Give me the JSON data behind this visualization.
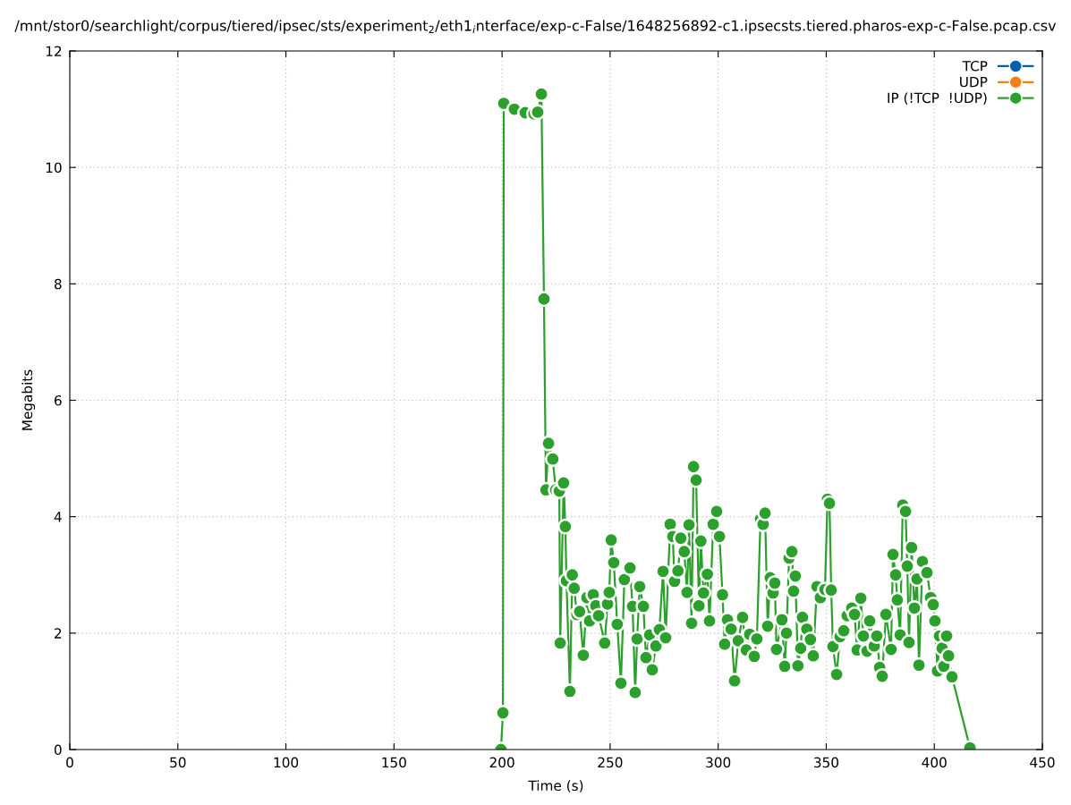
{
  "chart_data": {
    "type": "line",
    "title": "/mnt/stor0/searchlight/corpus/tiered/ipsec/sts/experiment$_{2}$/eth1$_{i}$nterface/exp-c-False/1648256892-c1.ipsecsts.tiered.pharos-exp-c-False.pcap.csv",
    "xlabel": "Time (s)",
    "ylabel": "Megabits",
    "xlim": [
      0,
      450
    ],
    "xticks": [
      0,
      50,
      100,
      150,
      200,
      250,
      300,
      350,
      400,
      450
    ],
    "ylim": [
      0,
      12
    ],
    "yticks": [
      0,
      2,
      4,
      6,
      8,
      10,
      12
    ],
    "grid": true,
    "legend": "top right",
    "marker": "circle",
    "line_style": "solid",
    "series": [
      {
        "name": "TCP",
        "color": "#0060ad"
      },
      {
        "name": "UDP",
        "color": "#f57f17"
      },
      {
        "name": "IP (!TCP  !UDP)",
        "color": "#2ca02c",
        "x": [
          199.5,
          200.4,
          200.8,
          205.7,
          210.7,
          214.8,
          216.5,
          218.2,
          219.4,
          220.3,
          221.5,
          223.5,
          224.8,
          226.5,
          226.9,
          228.5,
          229.3,
          229.8,
          231.4,
          232.5,
          233.4,
          234.6,
          235.9,
          237.6,
          239.3,
          240.5,
          242.2,
          243.4,
          244.7,
          247.5,
          248.8,
          249.6,
          250.5,
          251.7,
          253.3,
          255.0,
          256.6,
          259.2,
          260.4,
          261.6,
          262.5,
          263.7,
          265.4,
          266.6,
          268.3,
          269.5,
          271.2,
          272.8,
          274.5,
          275.7,
          277.8,
          279.0,
          279.8,
          281.4,
          282.7,
          284.3,
          285.6,
          286.5,
          287.7,
          288.6,
          289.8,
          291.1,
          292.0,
          293.2,
          295.0,
          296.0,
          297.7,
          299.3,
          300.6,
          302.0,
          303.0,
          304.3,
          306.0,
          307.6,
          309.3,
          311.3,
          313.0,
          314.6,
          316.7,
          317.9,
          319.6,
          320.8,
          321.7,
          322.9,
          324.1,
          325.4,
          326.2,
          327.0,
          329.5,
          330.8,
          331.6,
          332.8,
          334.1,
          334.9,
          335.7,
          336.9,
          338.2,
          339.0,
          341.0,
          342.7,
          344.0,
          345.7,
          347.3,
          349.4,
          350.6,
          351.5,
          352.3,
          353.1,
          354.8,
          356.4,
          358.1,
          359.7,
          361.8,
          363.1,
          364.3,
          366.0,
          367.2,
          368.9,
          370.1,
          372.2,
          373.4,
          374.7,
          375.9,
          377.6,
          380.0,
          380.9,
          382.1,
          382.9,
          384.2,
          385.4,
          386.7,
          387.5,
          388.3,
          389.5,
          390.8,
          392.0,
          392.9,
          394.5,
          396.6,
          398.3,
          399.5,
          400.3,
          401.5,
          402.4,
          403.6,
          404.4,
          405.7,
          406.6,
          408.2,
          416.5
        ],
        "values": [
          0,
          0.63,
          11.1,
          11.0,
          10.94,
          10.92,
          10.95,
          11.26,
          7.74,
          4.46,
          5.26,
          4.99,
          4.46,
          4.44,
          1.83,
          4.58,
          3.83,
          2.9,
          1.0,
          3.0,
          2.77,
          2.32,
          2.37,
          1.62,
          2.61,
          2.21,
          2.66,
          2.47,
          2.3,
          1.83,
          2.5,
          2.7,
          3.6,
          3.21,
          2.15,
          1.14,
          2.92,
          3.12,
          2.46,
          0.98,
          1.9,
          2.8,
          2.46,
          1.58,
          1.97,
          1.37,
          1.78,
          2.06,
          3.06,
          1.92,
          3.87,
          3.66,
          2.89,
          3.07,
          3.63,
          3.4,
          2.7,
          3.86,
          2.17,
          4.86,
          4.63,
          2.47,
          3.58,
          2.69,
          3.01,
          2.21,
          3.87,
          4.09,
          3.66,
          2.66,
          1.81,
          2.23,
          2.07,
          1.18,
          1.87,
          2.27,
          1.71,
          1.98,
          1.6,
          1.9,
          3.96,
          3.87,
          4.06,
          2.12,
          2.95,
          2.69,
          2.86,
          1.72,
          2.23,
          1.43,
          2.0,
          3.29,
          3.4,
          2.72,
          2.98,
          1.44,
          1.74,
          2.27,
          2.07,
          1.89,
          1.61,
          2.8,
          2.61,
          2.75,
          4.3,
          4.23,
          2.74,
          1.77,
          1.29,
          1.94,
          2.04,
          2.3,
          2.43,
          2.32,
          1.71,
          2.6,
          1.95,
          1.69,
          2.21,
          1.78,
          1.95,
          1.41,
          1.26,
          2.32,
          1.72,
          3.35,
          3.0,
          2.57,
          1.97,
          4.2,
          4.09,
          3.15,
          1.84,
          3.47,
          2.43,
          2.93,
          1.45,
          3.23,
          3.04,
          2.61,
          2.49,
          2.21,
          1.35,
          1.95,
          1.74,
          1.43,
          1.95,
          1.61,
          1.25,
          0.03
        ]
      }
    ]
  }
}
